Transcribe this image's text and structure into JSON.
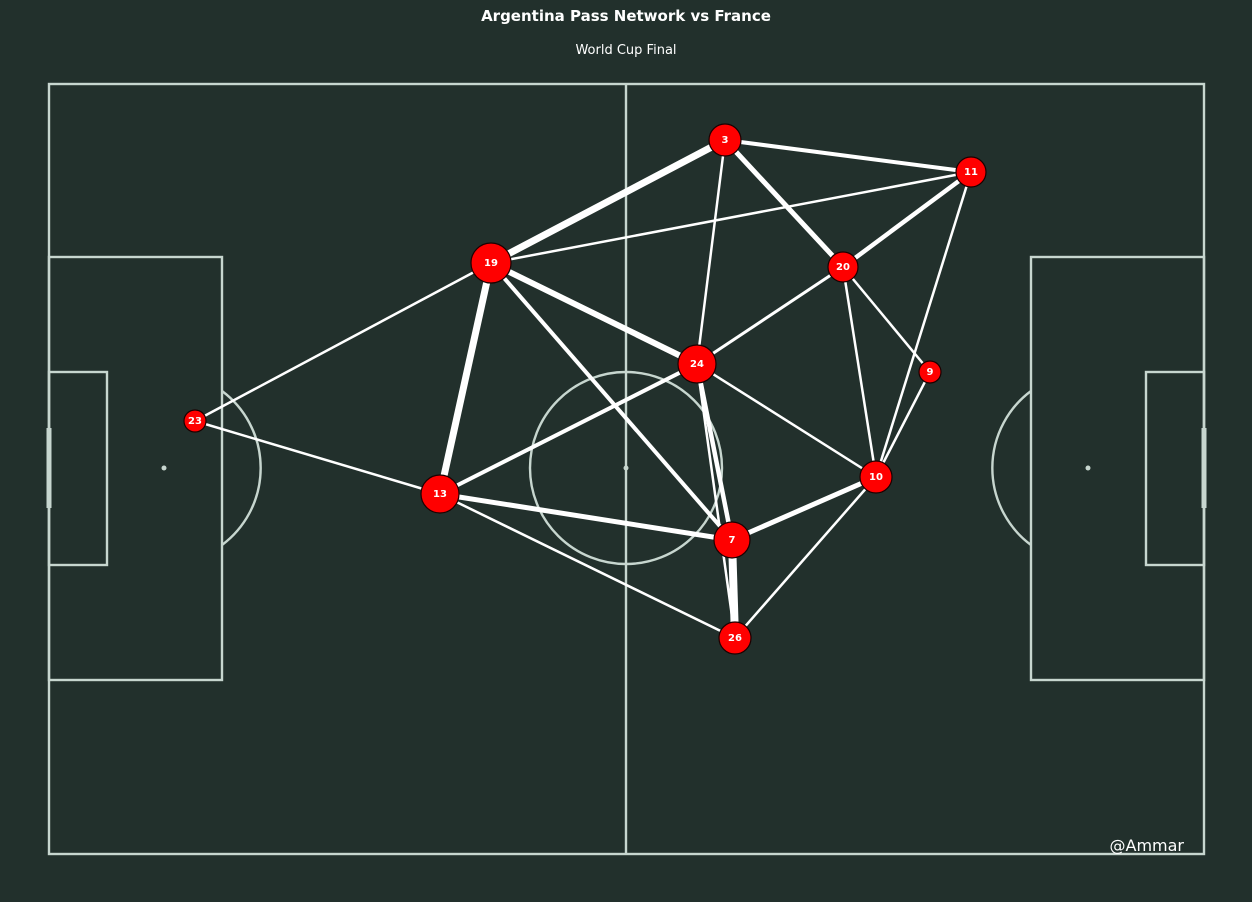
{
  "title": "Argentina Pass Network vs France",
  "subtitle": "World Cup Final",
  "credit": "@Ammar",
  "colors": {
    "background": "#22302c",
    "pitch_lines": "#c7d6cf",
    "edge": "#ffffff",
    "node_fill": "#ff0000",
    "node_stroke": "#1a0000",
    "label": "#ffffff"
  },
  "players": [
    {
      "id": "3",
      "label": "3"
    },
    {
      "id": "11",
      "label": "11"
    },
    {
      "id": "19",
      "label": "19"
    },
    {
      "id": "20",
      "label": "20"
    },
    {
      "id": "24",
      "label": "24"
    },
    {
      "id": "9",
      "label": "9"
    },
    {
      "id": "23",
      "label": "23"
    },
    {
      "id": "13",
      "label": "13"
    },
    {
      "id": "10",
      "label": "10"
    },
    {
      "id": "7",
      "label": "7"
    },
    {
      "id": "26",
      "label": "26"
    }
  ],
  "passes": [
    {
      "from": "19",
      "to": "3"
    },
    {
      "from": "3",
      "to": "11"
    },
    {
      "from": "3",
      "to": "20"
    },
    {
      "from": "3",
      "to": "24"
    },
    {
      "from": "19",
      "to": "11"
    },
    {
      "from": "20",
      "to": "11"
    },
    {
      "from": "11",
      "to": "10"
    },
    {
      "from": "19",
      "to": "24"
    },
    {
      "from": "19",
      "to": "13"
    },
    {
      "from": "19",
      "to": "7"
    },
    {
      "from": "19",
      "to": "23"
    },
    {
      "from": "24",
      "to": "20"
    },
    {
      "from": "20",
      "to": "9"
    },
    {
      "from": "20",
      "to": "10"
    },
    {
      "from": "24",
      "to": "13"
    },
    {
      "from": "24",
      "to": "10"
    },
    {
      "from": "24",
      "to": "7"
    },
    {
      "from": "24",
      "to": "26"
    },
    {
      "from": "9",
      "to": "10"
    },
    {
      "from": "23",
      "to": "13"
    },
    {
      "from": "13",
      "to": "7"
    },
    {
      "from": "13",
      "to": "26"
    },
    {
      "from": "7",
      "to": "10"
    },
    {
      "from": "7",
      "to": "26"
    },
    {
      "from": "10",
      "to": "26"
    }
  ]
}
